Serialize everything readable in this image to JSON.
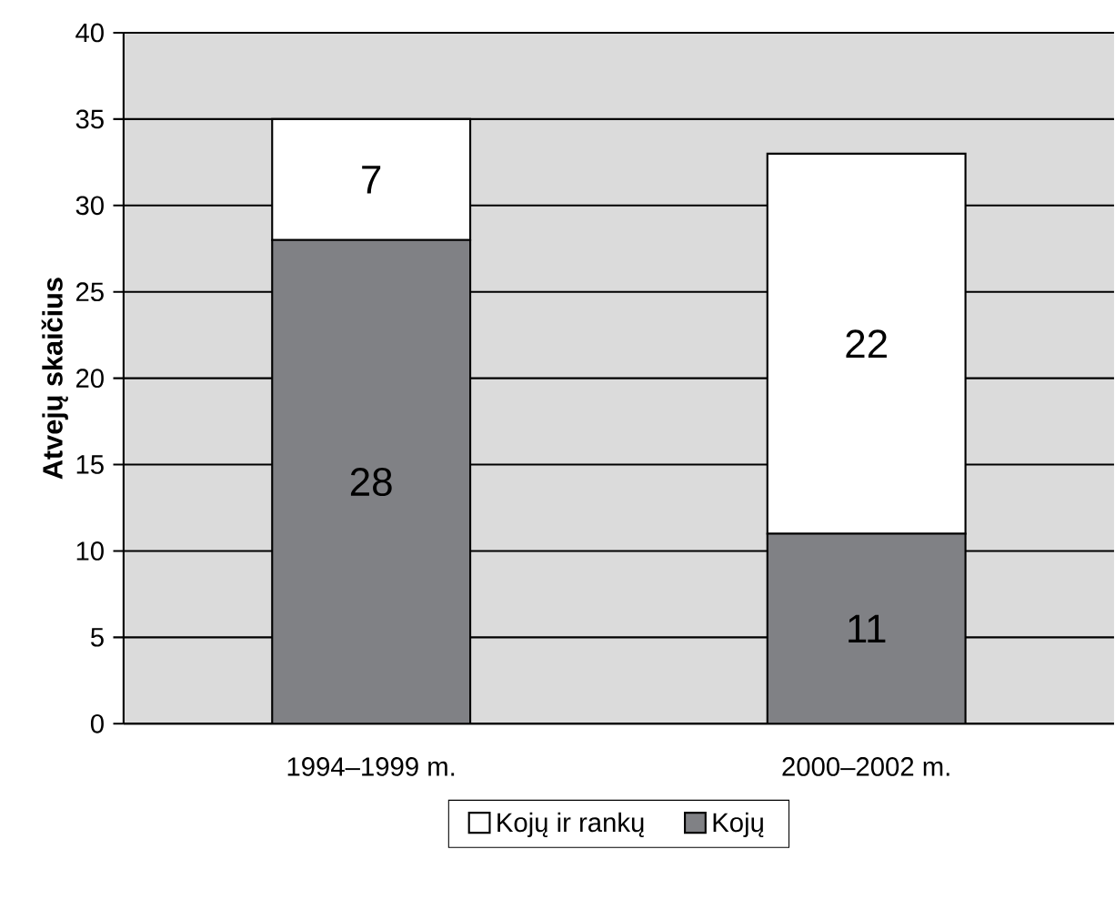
{
  "chart_data": {
    "type": "bar",
    "stacked": true,
    "ylabel": "Atvejų skaičius",
    "categories": [
      "1994–1999 m.",
      "2000–2002 m."
    ],
    "series": [
      {
        "name": "Kojų",
        "color": "#808185",
        "values": [
          28,
          11
        ],
        "value_labels": [
          "28",
          "11"
        ]
      },
      {
        "name": "Kojų ir rankų",
        "color": "#ffffff",
        "values": [
          7,
          22
        ],
        "value_labels": [
          "7",
          "22"
        ]
      }
    ],
    "ylim": [
      0,
      40
    ],
    "yticks": [
      0,
      5,
      10,
      15,
      20,
      25,
      30,
      35,
      40
    ],
    "grid": "y",
    "legend": "bottom"
  }
}
